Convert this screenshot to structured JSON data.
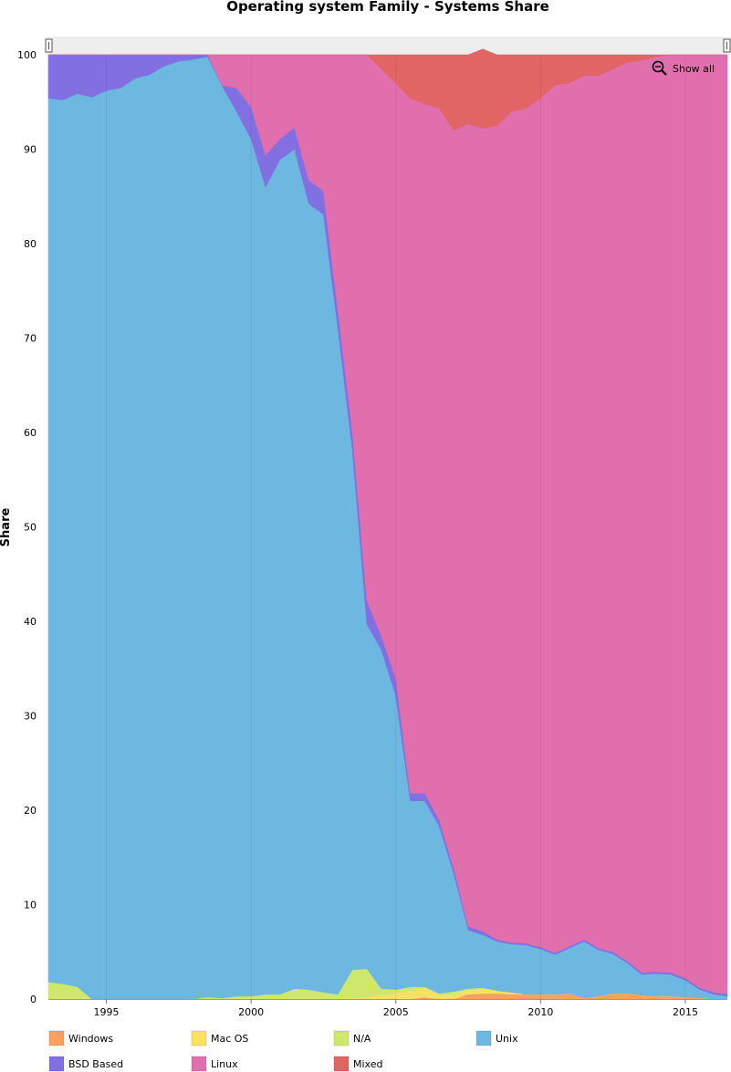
{
  "chart_data": {
    "type": "area",
    "stacked": true,
    "title": "Operating system Family - Systems Share",
    "ylabel": "Share",
    "xlabel": "",
    "ylim": [
      0,
      100
    ],
    "xlim": [
      1993.0,
      2016.45
    ],
    "yticks": [
      0,
      10,
      20,
      30,
      40,
      50,
      60,
      70,
      80,
      90,
      100
    ],
    "xticks": [
      1995,
      2000,
      2005,
      2010,
      2015
    ],
    "grid": true,
    "legend_position": "bottom",
    "zoom_button_label": "Show all",
    "x": [
      1993.0,
      1993.5,
      1994.0,
      1994.5,
      1995.0,
      1995.5,
      1996.0,
      1996.5,
      1997.0,
      1997.5,
      1998.0,
      1998.5,
      1999.0,
      1999.5,
      2000.0,
      2000.5,
      2001.0,
      2001.5,
      2002.0,
      2002.5,
      2003.0,
      2003.5,
      2004.0,
      2004.5,
      2005.0,
      2005.5,
      2006.0,
      2006.5,
      2007.0,
      2007.5,
      2008.0,
      2008.5,
      2009.0,
      2009.5,
      2010.0,
      2010.5,
      2011.0,
      2011.5,
      2012.0,
      2012.5,
      2013.0,
      2013.5,
      2014.0,
      2014.5,
      2015.0,
      2015.5,
      2016.0,
      2016.45
    ],
    "series": [
      {
        "name": "Windows",
        "color": "#fea161",
        "values": [
          0,
          0,
          0,
          0,
          0,
          0,
          0,
          0,
          0,
          0,
          0,
          0,
          0,
          0,
          0,
          0,
          0,
          0,
          0,
          0,
          0,
          0,
          0,
          0,
          0,
          0,
          0.2,
          0,
          0,
          0.5,
          0.6,
          0.6,
          0.5,
          0.5,
          0.5,
          0.5,
          0.6,
          0.1,
          0.3,
          0.6,
          0.6,
          0.4,
          0.3,
          0.3,
          0.2,
          0.1,
          0,
          0
        ]
      },
      {
        "name": "Mac OS",
        "color": "#fee162",
        "values": [
          0,
          0,
          0,
          0,
          0,
          0,
          0,
          0,
          0,
          0,
          0,
          0,
          0,
          0,
          0,
          0,
          0,
          0,
          0,
          0,
          0,
          0.1,
          0.2,
          0.4,
          0.6,
          0.9,
          1.0,
          0.4,
          0.5,
          0.4,
          0.5,
          0.3,
          0.2,
          0,
          0,
          0,
          0,
          0,
          0,
          0,
          0,
          0,
          0,
          0,
          0,
          0,
          0,
          0
        ]
      },
      {
        "name": "N/A",
        "color": "#cfe86c",
        "values": [
          1.8,
          1.6,
          1.3,
          0,
          0,
          0,
          0,
          0,
          0,
          0,
          0,
          0.2,
          0.1,
          0.3,
          0.3,
          0.5,
          0.5,
          1.1,
          1.0,
          0.7,
          0.5,
          3.0,
          3.0,
          0.7,
          0.4,
          0.4,
          0.1,
          0.2,
          0.3,
          0.2,
          0.1,
          0,
          0,
          0,
          0,
          0,
          0,
          0,
          0,
          0,
          0,
          0,
          0,
          0,
          0,
          0,
          0,
          0
        ]
      },
      {
        "name": "Unix",
        "color": "#6db8e0",
        "values": [
          93.6,
          93.6,
          94.6,
          95.5,
          96.2,
          96.5,
          97.5,
          97.9,
          98.8,
          99.3,
          99.5,
          99.6,
          96.6,
          93.7,
          90.8,
          85.5,
          88.4,
          88.9,
          83.2,
          82.4,
          70.5,
          55.0,
          36.5,
          35.9,
          31.1,
          19.7,
          19.7,
          17.7,
          12.5,
          6.2,
          5.6,
          5.2,
          5.1,
          5.2,
          4.8,
          4.2,
          4.8,
          6.0,
          4.9,
          4.2,
          3.2,
          2.2,
          2.4,
          2.3,
          1.8,
          0.9,
          0.5,
          0.3
        ]
      },
      {
        "name": "BSD Based",
        "color": "#8270e3",
        "values": [
          4.6,
          4.8,
          4.1,
          4.5,
          3.8,
          3.5,
          2.5,
          2.1,
          1.2,
          0.7,
          0.5,
          0.2,
          0.1,
          2.5,
          3.4,
          3.4,
          2.2,
          2.3,
          2.5,
          2.5,
          2.0,
          2.0,
          2.5,
          1.5,
          1.9,
          0.8,
          0.8,
          0.7,
          0.6,
          0.4,
          0.4,
          0.2,
          0.2,
          0.2,
          0.2,
          0.2,
          0.2,
          0.2,
          0.2,
          0.2,
          0.2,
          0.2,
          0.2,
          0.2,
          0.2,
          0.2,
          0.2,
          0.2
        ]
      },
      {
        "name": "Linux",
        "color": "#e26fad",
        "values": [
          0,
          0,
          0,
          0,
          0,
          0,
          0,
          0,
          0,
          0,
          0,
          0,
          3.2,
          3.5,
          5.5,
          10.6,
          8.9,
          7.7,
          13.3,
          14.4,
          27.0,
          39.9,
          57.8,
          60.0,
          63.0,
          73.6,
          73.0,
          75.3,
          78.1,
          85.0,
          85.0,
          86.2,
          88.0,
          88.4,
          89.9,
          91.9,
          91.4,
          91.5,
          92.4,
          93.5,
          95.2,
          96.6,
          96.9,
          97.2,
          97.8,
          98.8,
          99.3,
          99.5
        ]
      },
      {
        "name": "Mixed",
        "color": "#e26565",
        "values": [
          0,
          0,
          0,
          0,
          0,
          0,
          0,
          0,
          0,
          0,
          0,
          0,
          0,
          0,
          0,
          0,
          0,
          0,
          0,
          0,
          0,
          0,
          0,
          1.5,
          3.0,
          4.6,
          5.2,
          5.7,
          8.0,
          7.3,
          8.4,
          7.5,
          6.0,
          5.7,
          4.6,
          3.2,
          3.0,
          2.2,
          2.2,
          1.5,
          0.8,
          0.6,
          0.2,
          0,
          0,
          0,
          0,
          0
        ]
      }
    ]
  }
}
